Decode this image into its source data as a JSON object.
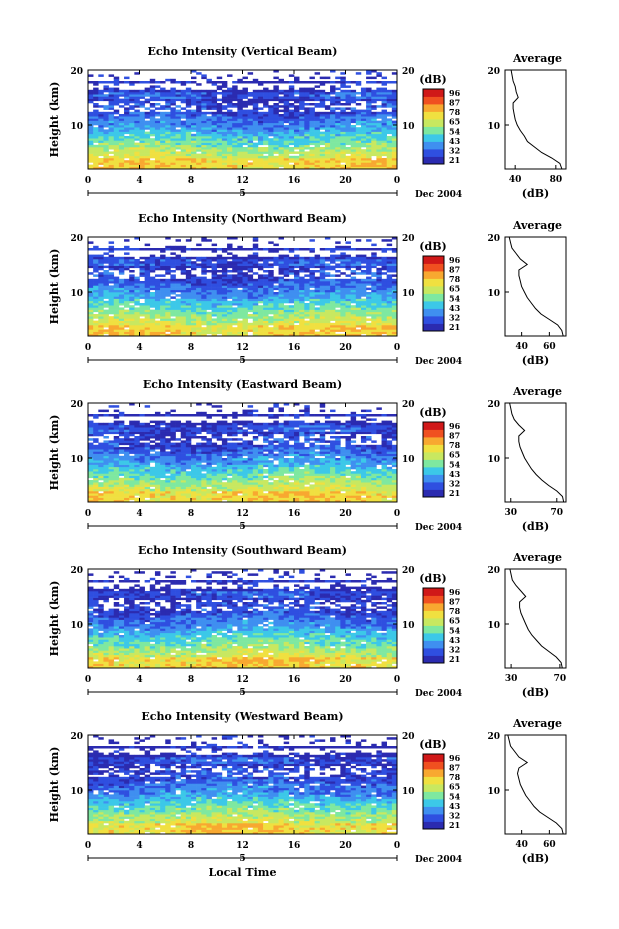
{
  "chart_data": [
    {
      "type": "heatmap",
      "title": "Echo Intensity (Vertical Beam)",
      "ylabel": "Height (km)",
      "y_ticks": [
        "20",
        "10"
      ],
      "x_ticks": [
        "0",
        "4",
        "8",
        "12",
        "16",
        "20",
        "0"
      ],
      "xlim": [
        0,
        24
      ],
      "ylim": [
        2,
        20
      ],
      "date_mark": "5",
      "date_label": "Dec 2004",
      "colorbar": {
        "unit": "(dB)",
        "levels": [
          "96",
          "87",
          "78",
          "65",
          "54",
          "43",
          "32",
          "21"
        ]
      },
      "profile": {
        "title": "Average",
        "xlabel": "(dB)",
        "x_ticks": [
          "40",
          "80"
        ],
        "y_ticks": [
          "20",
          "10"
        ],
        "xlim": [
          30,
          90
        ],
        "h": [
          2,
          3,
          4,
          5,
          6,
          7,
          8,
          9,
          10,
          11,
          12,
          13,
          14,
          15,
          16,
          17,
          18,
          19,
          20
        ],
        "db": [
          86,
          84,
          76,
          66,
          59,
          52,
          49,
          45,
          42,
          40,
          39,
          38,
          38,
          43,
          41,
          40,
          38,
          37,
          36
        ]
      }
    },
    {
      "type": "heatmap",
      "title": "Echo Intensity (Northward Beam)",
      "ylabel": "Height (km)",
      "y_ticks": [
        "20",
        "10"
      ],
      "x_ticks": [
        "0",
        "4",
        "8",
        "12",
        "16",
        "20",
        "0"
      ],
      "xlim": [
        0,
        24
      ],
      "ylim": [
        2,
        20
      ],
      "date_mark": "5",
      "date_label": "Dec 2004",
      "colorbar": {
        "unit": "(dB)",
        "levels": [
          "96",
          "87",
          "78",
          "65",
          "54",
          "43",
          "32",
          "21"
        ]
      },
      "profile": {
        "title": "Average",
        "xlabel": "(dB)",
        "x_ticks": [
          "40",
          "60"
        ],
        "y_ticks": [
          "20",
          "10"
        ],
        "xlim": [
          28,
          72
        ],
        "h": [
          2,
          3,
          4,
          5,
          6,
          7,
          8,
          9,
          10,
          11,
          12,
          13,
          14,
          15,
          16,
          17,
          18,
          19,
          20
        ],
        "db": [
          70,
          69,
          66,
          60,
          54,
          50,
          47,
          44,
          42,
          40,
          39,
          38,
          38,
          44,
          39,
          36,
          33,
          32,
          31
        ]
      }
    },
    {
      "type": "heatmap",
      "title": "Echo Intensity (Eastward Beam)",
      "ylabel": "Height (km)",
      "y_ticks": [
        "20",
        "10"
      ],
      "x_ticks": [
        "0",
        "4",
        "8",
        "12",
        "16",
        "20",
        "0"
      ],
      "xlim": [
        0,
        24
      ],
      "ylim": [
        2,
        20
      ],
      "date_mark": "5",
      "date_label": "Dec 2004",
      "colorbar": {
        "unit": "(dB)",
        "levels": [
          "96",
          "87",
          "78",
          "65",
          "54",
          "43",
          "32",
          "21"
        ]
      },
      "profile": {
        "title": "Average",
        "xlabel": "(dB)",
        "x_ticks": [
          "30",
          "70"
        ],
        "y_ticks": [
          "20",
          "10"
        ],
        "xlim": [
          25,
          78
        ],
        "h": [
          2,
          3,
          4,
          5,
          6,
          7,
          8,
          9,
          10,
          11,
          12,
          13,
          14,
          15,
          16,
          17,
          18,
          19,
          20
        ],
        "db": [
          76,
          75,
          70,
          63,
          57,
          52,
          48,
          45,
          42,
          40,
          38,
          37,
          37,
          42,
          37,
          33,
          31,
          30,
          29
        ]
      }
    },
    {
      "type": "heatmap",
      "title": "Echo Intensity (Southward Beam)",
      "ylabel": "Height (km)",
      "y_ticks": [
        "20",
        "10"
      ],
      "x_ticks": [
        "0",
        "4",
        "8",
        "12",
        "16",
        "20",
        "0"
      ],
      "xlim": [
        0,
        24
      ],
      "ylim": [
        2,
        20
      ],
      "date_mark": "5",
      "date_label": "Dec 2004",
      "colorbar": {
        "unit": "(dB)",
        "levels": [
          "96",
          "87",
          "78",
          "65",
          "54",
          "43",
          "32",
          "21"
        ]
      },
      "profile": {
        "title": "Average",
        "xlabel": "(dB)",
        "x_ticks": [
          "30",
          "70"
        ],
        "y_ticks": [
          "20",
          "10"
        ],
        "xlim": [
          25,
          75
        ],
        "h": [
          2,
          3,
          4,
          5,
          6,
          7,
          8,
          9,
          10,
          11,
          12,
          13,
          14,
          15,
          16,
          17,
          18,
          19,
          20
        ],
        "db": [
          72,
          71,
          67,
          61,
          55,
          51,
          47,
          44,
          42,
          40,
          38,
          37,
          37,
          42,
          38,
          34,
          31,
          30,
          29
        ]
      }
    },
    {
      "type": "heatmap",
      "title": "Echo Intensity (Westward Beam)",
      "ylabel": "Height (km)",
      "y_ticks": [
        "20",
        "10"
      ],
      "x_ticks": [
        "0",
        "4",
        "8",
        "12",
        "16",
        "20",
        "0"
      ],
      "xlim": [
        0,
        24
      ],
      "ylim": [
        2,
        20
      ],
      "date_mark": "5",
      "date_label": "Dec 2004",
      "xlabel": "Local Time",
      "colorbar": {
        "unit": "(dB)",
        "levels": [
          "96",
          "87",
          "78",
          "65",
          "54",
          "43",
          "32",
          "21"
        ]
      },
      "profile": {
        "title": "Average",
        "xlabel": "(dB)",
        "x_ticks": [
          "40",
          "60"
        ],
        "y_ticks": [
          "20",
          "10"
        ],
        "xlim": [
          28,
          72
        ],
        "h": [
          2,
          3,
          4,
          5,
          6,
          7,
          8,
          9,
          10,
          11,
          12,
          13,
          14,
          15,
          16,
          17,
          18,
          19,
          20
        ],
        "db": [
          70,
          69,
          65,
          59,
          53,
          49,
          46,
          43,
          41,
          39,
          38,
          37,
          38,
          44,
          38,
          35,
          32,
          31,
          30
        ]
      }
    }
  ],
  "colors": {
    "scale": [
      "#2b2bb0",
      "#2f4fe0",
      "#3f8ff0",
      "#3cc8e8",
      "#7ee8a0",
      "#c8e860",
      "#f0e040",
      "#f8a830",
      "#f05020",
      "#d01818"
    ]
  }
}
